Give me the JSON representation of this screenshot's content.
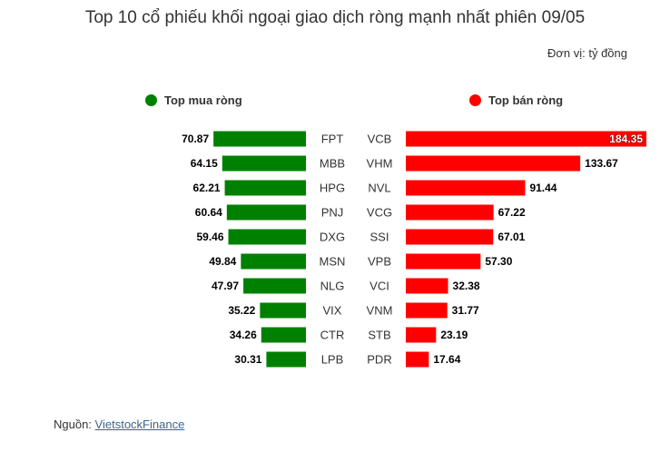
{
  "title": "Top 10 cổ phiếu khối ngoại giao dịch ròng mạnh nhất phiên 09/05",
  "unit": "Đơn vị: tỷ đồng",
  "source": {
    "label": "Nguồn: ",
    "link_text": "VietstockFinance"
  },
  "colors": {
    "buy": "#008000",
    "sell": "#ff0000"
  },
  "chart_data": [
    {
      "type": "bar",
      "orientation": "horizontal",
      "title": "Top mua ròng",
      "legend": "Top mua ròng",
      "direction": "right-to-left",
      "categories": [
        "FPT",
        "MBB",
        "HPG",
        "PNJ",
        "DXG",
        "MSN",
        "NLG",
        "VIX",
        "CTR",
        "LPB"
      ],
      "values": [
        70.87,
        64.15,
        62.21,
        60.64,
        59.46,
        49.84,
        47.97,
        35.22,
        34.26,
        30.31
      ],
      "labels": [
        "70.87",
        "64.15",
        "62.21",
        "60.64",
        "59.46",
        "49.84",
        "47.97",
        "35.22",
        "34.26",
        "30.31"
      ]
    },
    {
      "type": "bar",
      "orientation": "horizontal",
      "title": "Top bán ròng",
      "legend": "Top bán ròng",
      "direction": "left-to-right",
      "categories": [
        "VCB",
        "VHM",
        "NVL",
        "VCG",
        "SSI",
        "VPB",
        "VCI",
        "VNM",
        "STB",
        "PDR"
      ],
      "values": [
        184.35,
        133.67,
        91.44,
        67.22,
        67.01,
        57.3,
        32.38,
        31.77,
        23.19,
        17.64
      ],
      "labels": [
        "184.35",
        "133.67",
        "91.44",
        "67.22",
        "67.01",
        "57.30",
        "32.38",
        "31.77",
        "23.19",
        "17.64"
      ]
    }
  ]
}
